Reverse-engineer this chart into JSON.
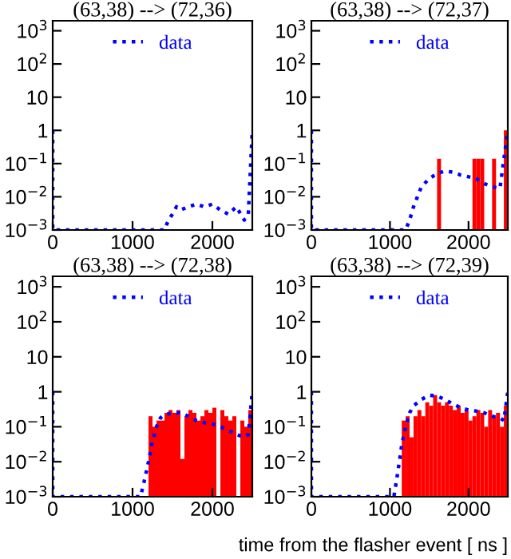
{
  "chart_data": [
    {
      "type": "line",
      "title": "(63,38) --> (72,36)",
      "xlim": [
        0,
        2500
      ],
      "xticks": [
        0,
        1000,
        2000
      ],
      "ylim": [
        0.001,
        2000
      ],
      "log": "y",
      "legend": "top",
      "yticks": [
        {
          "value": 0.001,
          "label": "10$^{−3}$"
        },
        {
          "value": 0.01,
          "label": "10$^{−2}$"
        },
        {
          "value": 0.1,
          "label": "10$^{−1}$"
        },
        1,
        10,
        {
          "value": 100,
          "label": "10$^{2}$"
        },
        {
          "value": 1000,
          "label": "10$^{3}$"
        }
      ],
      "series": [
        {
          "name": "data",
          "line_style": "dotted",
          "color": "#0000ff",
          "x": [
            0,
            0,
            1400,
            1450,
            1500,
            1550,
            1600,
            1700,
            1800,
            1900,
            2000,
            2100,
            2200,
            2300,
            2400,
            2450,
            2500
          ],
          "values": [
            1,
            0.001,
            0.001,
            0.002,
            0.003,
            0.005,
            0.004,
            0.005,
            0.006,
            0.005,
            0.006,
            0.004,
            0.003,
            0.005,
            0.002,
            0.003,
            1
          ]
        }
      ]
    },
    {
      "type": "line",
      "title": "(63,38) --> (72,37)",
      "xlim": [
        0,
        2500
      ],
      "xticks": [
        0,
        1000,
        2000
      ],
      "ylim": [
        0.001,
        2000
      ],
      "log": "y",
      "legend": "top",
      "yticks": [
        {
          "value": 0.001,
          "label": "10$^{−3}$"
        },
        {
          "value": 0.01,
          "label": "10$^{−2}$"
        },
        {
          "value": 0.1,
          "label": "10$^{−1}$"
        },
        1,
        10,
        {
          "value": 100,
          "label": "10$^{2}$"
        },
        {
          "value": 1000,
          "label": "10$^{3}$"
        }
      ],
      "series": [
        {
          "type": "bar",
          "color": "#ff0000",
          "x": [
            1625,
            2075,
            2125,
            2175,
            2325,
            2475
          ],
          "values": [
            0.14,
            0.14,
            0.14,
            0.14,
            0.14,
            1
          ]
        },
        {
          "name": "data",
          "line_style": "dotted",
          "color": "#0000ff",
          "x": [
            0,
            0,
            1200,
            1250,
            1300,
            1350,
            1400,
            1500,
            1600,
            1700,
            1800,
            1900,
            2000,
            2100,
            2200,
            2300,
            2400,
            2500
          ],
          "values": [
            1,
            0.001,
            0.001,
            0.002,
            0.005,
            0.01,
            0.02,
            0.035,
            0.05,
            0.06,
            0.055,
            0.045,
            0.04,
            0.035,
            0.025,
            0.02,
            0.018,
            1
          ]
        }
      ]
    },
    {
      "type": "line",
      "title": "(63,38) --> (72,38)",
      "xlim": [
        0,
        2500
      ],
      "xticks": [
        0,
        1000,
        2000
      ],
      "ylim": [
        0.001,
        2000
      ],
      "log": "y",
      "legend": "top",
      "yticks": [
        {
          "value": 0.001,
          "label": "10$^{−3}$"
        },
        {
          "value": 0.01,
          "label": "10$^{−2}$"
        },
        {
          "value": 0.1,
          "label": "10$^{−1}$"
        },
        1,
        10,
        {
          "value": 100,
          "label": "10$^{2}$"
        },
        {
          "value": 1000,
          "label": "10$^{3}$"
        }
      ],
      "series": [
        {
          "type": "bar",
          "color": "#ff0000",
          "x": [
            1225,
            1275,
            1325,
            1375,
            1425,
            1475,
            1525,
            1575,
            1625,
            1675,
            1725,
            1775,
            1825,
            1875,
            1925,
            1975,
            2025,
            2075,
            2125,
            2175,
            2225,
            2275,
            2325,
            2375,
            2425,
            2475
          ],
          "values": [
            0.2,
            0.1,
            0.15,
            0.15,
            0.25,
            0.3,
            0.25,
            0.3,
            0.012,
            0.2,
            0.3,
            0.25,
            0.15,
            0.2,
            0.3,
            0.25,
            0.35,
            null,
            0.3,
            0.2,
            0.15,
            0.2,
            null,
            0.15,
            0.1,
            0.3
          ]
        },
        {
          "name": "data",
          "line_style": "dotted",
          "color": "#0000ff",
          "x": [
            0,
            0,
            1100,
            1150,
            1200,
            1250,
            1300,
            1350,
            1400,
            1500,
            1600,
            1700,
            1800,
            1900,
            2000,
            2100,
            2200,
            2300,
            2400,
            2450,
            2500
          ],
          "values": [
            1,
            0.001,
            0.001,
            0.003,
            0.01,
            0.04,
            0.1,
            0.18,
            0.22,
            0.25,
            0.25,
            0.2,
            0.15,
            0.13,
            0.12,
            0.1,
            0.08,
            0.06,
            0.05,
            0.06,
            1
          ]
        }
      ]
    },
    {
      "type": "line",
      "title": "(63,38) --> (72,39)",
      "xlabel": "time from the flasher event [ ns ]",
      "xlim": [
        0,
        2500
      ],
      "xticks": [
        0,
        1000,
        2000
      ],
      "ylim": [
        0.001,
        2000
      ],
      "log": "y",
      "legend": "top",
      "yticks": [
        {
          "value": 0.001,
          "label": "10$^{−3}$"
        },
        {
          "value": 0.01,
          "label": "10$^{−2}$"
        },
        {
          "value": 0.1,
          "label": "10$^{−1}$"
        },
        1,
        10,
        {
          "value": 100,
          "label": "10$^{2}$"
        },
        {
          "value": 1000,
          "label": "10$^{3}$"
        }
      ],
      "series": [
        {
          "type": "bar",
          "color": "#ff0000",
          "x": [
            1175,
            1225,
            1275,
            1325,
            1375,
            1425,
            1475,
            1525,
            1575,
            1625,
            1675,
            1725,
            1775,
            1825,
            1875,
            1925,
            1975,
            2025,
            2075,
            2125,
            2175,
            2225,
            2275,
            2325,
            2375,
            2425,
            2475
          ],
          "values": [
            0.15,
            0.2,
            0.05,
            0.2,
            0.3,
            0.2,
            0.5,
            0.4,
            0.8,
            0.5,
            0.4,
            0.5,
            0.4,
            0.3,
            0.4,
            0.25,
            0.3,
            0.15,
            0.2,
            0.3,
            0.25,
            0.1,
            0.3,
            0.2,
            0.25,
            0.1,
            0.4
          ]
        },
        {
          "name": "data",
          "line_style": "dotted",
          "color": "#0000ff",
          "x": [
            0,
            0,
            1050,
            1100,
            1150,
            1200,
            1250,
            1300,
            1400,
            1500,
            1600,
            1700,
            1800,
            1900,
            2000,
            2100,
            2200,
            2300,
            2400,
            2450,
            2500
          ],
          "values": [
            1,
            0.001,
            0.001,
            0.005,
            0.03,
            0.1,
            0.25,
            0.4,
            0.6,
            0.8,
            0.75,
            0.6,
            0.45,
            0.35,
            0.3,
            0.28,
            0.25,
            0.2,
            0.18,
            0.15,
            1
          ]
        }
      ]
    }
  ]
}
